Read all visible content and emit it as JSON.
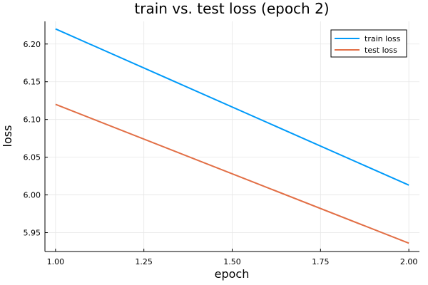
{
  "chart_data": {
    "type": "line",
    "title": "train vs. test loss (epoch 2)",
    "xlabel": "epoch",
    "ylabel": "loss",
    "xlim": [
      0.97,
      2.03
    ],
    "ylim": [
      5.925,
      6.23
    ],
    "xticks": [
      1.0,
      1.25,
      1.5,
      1.75,
      2.0
    ],
    "xtick_labels": [
      "1.00",
      "1.25",
      "1.50",
      "1.75",
      "2.00"
    ],
    "yticks": [
      5.95,
      6.0,
      6.05,
      6.1,
      6.15,
      6.2
    ],
    "ytick_labels": [
      "5.95",
      "6.00",
      "6.05",
      "6.10",
      "6.15",
      "6.20"
    ],
    "grid": true,
    "legend_position": "top-right",
    "series": [
      {
        "name": "train loss",
        "color": "#009af9",
        "x": [
          1.0,
          2.0
        ],
        "y": [
          6.22,
          6.013
        ]
      },
      {
        "name": "test loss",
        "color": "#e26f46",
        "x": [
          1.0,
          2.0
        ],
        "y": [
          6.12,
          5.936
        ]
      }
    ]
  }
}
